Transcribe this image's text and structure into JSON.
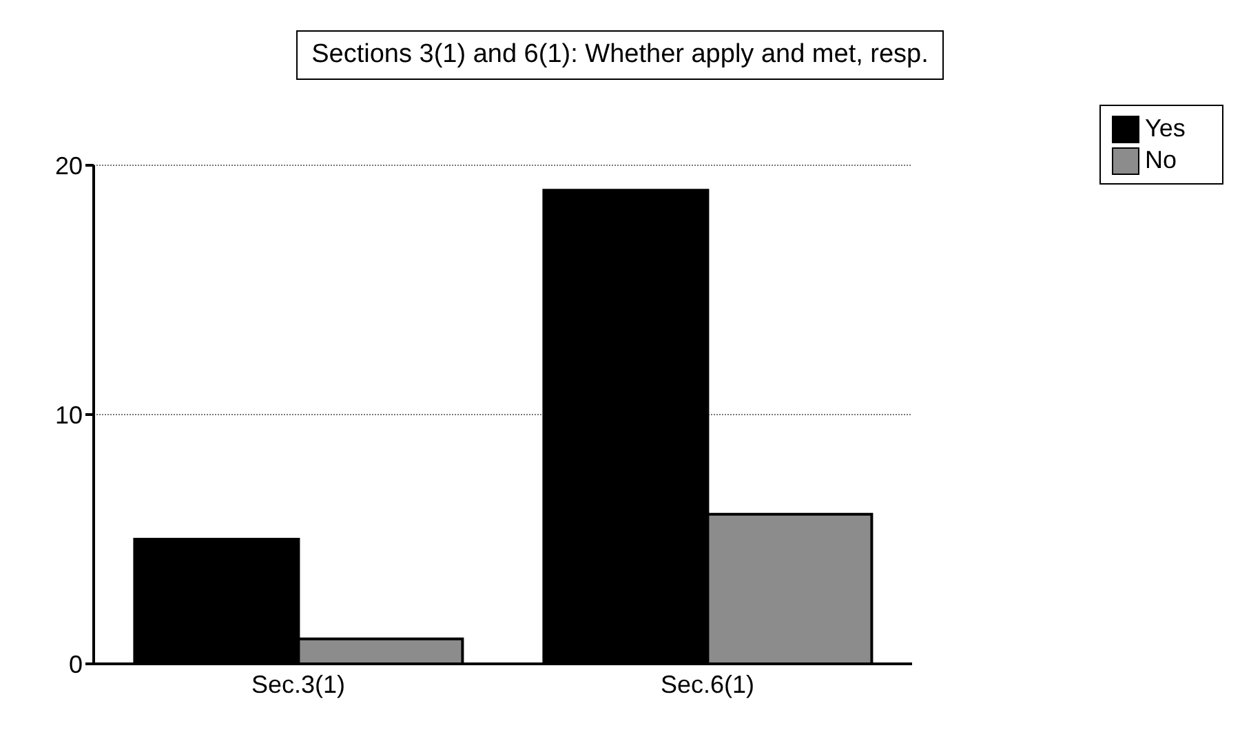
{
  "chart_data": {
    "type": "bar",
    "title": "Sections 3(1) and 6(1): Whether apply and met, resp.",
    "categories": [
      "Sec.3(1)",
      "Sec.6(1)"
    ],
    "series": [
      {
        "name": "Yes",
        "color": "#000000",
        "values": [
          5,
          19
        ]
      },
      {
        "name": "No",
        "color": "#8c8c8c",
        "values": [
          1,
          6
        ]
      }
    ],
    "ylim": [
      0,
      20
    ],
    "yticks": [
      0,
      10,
      20
    ],
    "grid": "y",
    "legend": "top right"
  }
}
